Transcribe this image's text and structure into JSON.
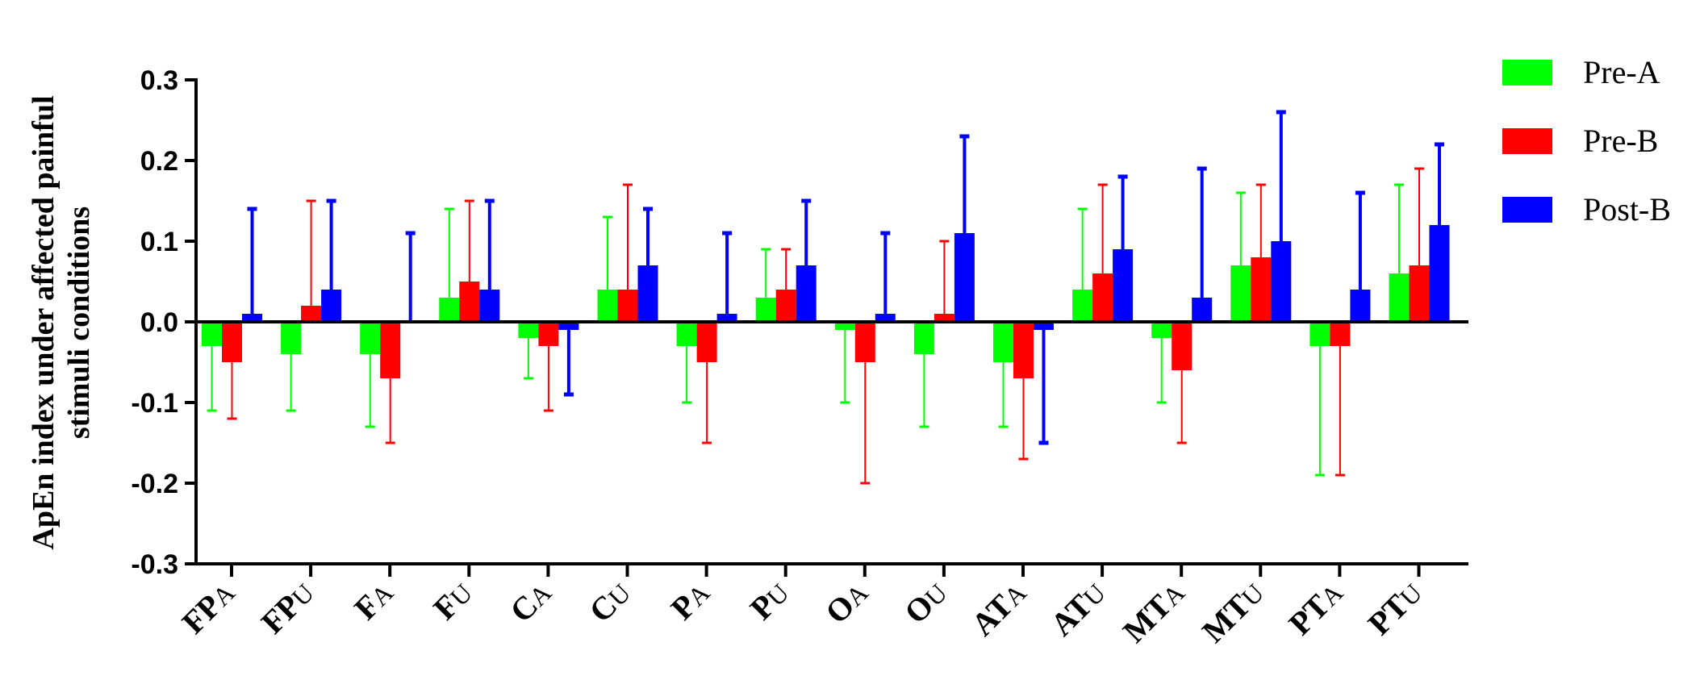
{
  "chart_data": {
    "type": "bar",
    "ylabel_lines": [
      "ApEn index under affected painful",
      "stimuli conditions"
    ],
    "xlabel": "",
    "ylim": [
      -0.3,
      0.3
    ],
    "yticks": [
      "0.3",
      "0.2",
      "0.1",
      "0.0",
      "-0.1",
      "-0.2",
      "-0.3"
    ],
    "ytick_values": [
      0.3,
      0.2,
      0.1,
      0.0,
      -0.1,
      -0.2,
      -0.3
    ],
    "grid": false,
    "legend_position": "top-right",
    "categories": [
      {
        "main": "FP",
        "sub": "A"
      },
      {
        "main": "FP",
        "sub": "U"
      },
      {
        "main": "F",
        "sub": "A"
      },
      {
        "main": "F",
        "sub": "U"
      },
      {
        "main": "C",
        "sub": "A"
      },
      {
        "main": "C",
        "sub": "U"
      },
      {
        "main": "P",
        "sub": "A"
      },
      {
        "main": "P",
        "sub": "U"
      },
      {
        "main": "O",
        "sub": "A"
      },
      {
        "main": "O",
        "sub": "U"
      },
      {
        "main": "AT",
        "sub": "A"
      },
      {
        "main": "AT",
        "sub": "U"
      },
      {
        "main": "MT",
        "sub": "A"
      },
      {
        "main": "MT",
        "sub": "U"
      },
      {
        "main": "PT",
        "sub": "A"
      },
      {
        "main": "PT",
        "sub": "U"
      }
    ],
    "series": [
      {
        "name": "Pre-A",
        "color": "#00ff00",
        "values": [
          -0.03,
          -0.04,
          -0.04,
          0.03,
          -0.02,
          0.04,
          -0.03,
          0.03,
          -0.01,
          -0.04,
          -0.05,
          0.04,
          -0.02,
          0.07,
          -0.03,
          0.06
        ],
        "error_ends": [
          -0.11,
          -0.11,
          -0.13,
          0.14,
          -0.07,
          0.13,
          -0.1,
          0.09,
          -0.1,
          -0.13,
          -0.13,
          0.14,
          -0.1,
          0.16,
          -0.19,
          0.17
        ]
      },
      {
        "name": "Pre-B",
        "color": "#ff0000",
        "values": [
          -0.05,
          0.02,
          -0.07,
          0.05,
          -0.03,
          0.04,
          -0.05,
          0.04,
          -0.05,
          0.01,
          -0.07,
          0.06,
          -0.06,
          0.08,
          -0.03,
          0.07
        ],
        "error_ends": [
          -0.12,
          0.15,
          -0.15,
          0.15,
          -0.11,
          0.17,
          -0.15,
          0.09,
          -0.2,
          0.1,
          -0.17,
          0.17,
          -0.15,
          0.17,
          -0.19,
          0.19
        ]
      },
      {
        "name": "Post-B",
        "color": "#0000ff",
        "values": [
          0.01,
          0.04,
          0.0,
          0.04,
          -0.01,
          0.07,
          0.01,
          0.07,
          0.01,
          0.11,
          -0.01,
          0.09,
          0.03,
          0.1,
          0.04,
          0.12
        ],
        "error_ends": [
          0.14,
          0.15,
          0.11,
          0.15,
          -0.09,
          0.14,
          0.11,
          0.15,
          0.11,
          0.23,
          -0.15,
          0.18,
          0.19,
          0.26,
          0.16,
          0.22
        ]
      }
    ]
  }
}
